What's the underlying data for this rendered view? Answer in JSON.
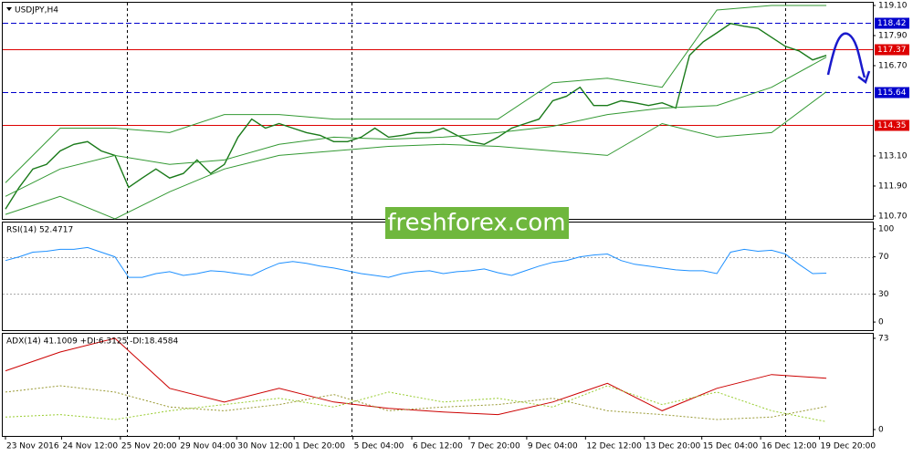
{
  "chart_data": [
    {
      "type": "line",
      "title": "USDJPY,H4",
      "xlim": [
        -0.2,
        63.4
      ],
      "ylim": [
        110.59,
        119.21
      ],
      "yticks": [
        {
          "value": 119.1,
          "label": "119.10"
        },
        {
          "value": 117.9,
          "label": "117.90"
        },
        {
          "value": 116.7,
          "label": "116.70"
        },
        {
          "value": 113.1,
          "label": "113.10"
        },
        {
          "value": 111.9,
          "label": "111.90"
        },
        {
          "value": 110.7,
          "label": "110.70"
        }
      ],
      "xticks": [
        {
          "value": 0,
          "label": "23 Nov 2016"
        },
        {
          "value": 4.1,
          "label": "24 Nov 12:00"
        },
        {
          "value": 8.4,
          "label": "25 Nov 20:00"
        },
        {
          "value": 12.7,
          "label": "29 Nov 04:00"
        },
        {
          "value": 16.9,
          "label": "30 Nov 12:00"
        },
        {
          "value": 21.1,
          "label": "1 Dec 20:00"
        },
        {
          "value": 25.4,
          "label": "5 Dec 04:00"
        },
        {
          "value": 29.7,
          "label": "6 Dec 12:00"
        },
        {
          "value": 33.9,
          "label": "7 Dec 20:00"
        },
        {
          "value": 38.1,
          "label": "9 Dec 04:00"
        },
        {
          "value": 42.4,
          "label": "12 Dec 12:00"
        },
        {
          "value": 46.7,
          "label": "13 Dec 20:00"
        },
        {
          "value": 50.9,
          "label": "15 Dec 04:00"
        },
        {
          "value": 55.2,
          "label": "16 Dec 12:00"
        },
        {
          "value": 59.5,
          "label": "19 Dec 20:00"
        }
      ],
      "levels": [
        {
          "value": 118.42,
          "color": "#0000cc",
          "dashed": true,
          "tag": true
        },
        {
          "value": 117.37,
          "color": "#dd0000",
          "dashed": false,
          "tag": true
        },
        {
          "value": 115.64,
          "color": "#0000cc",
          "dashed": true,
          "tag": true
        },
        {
          "value": 114.35,
          "color": "#dd0000",
          "dashed": false,
          "tag": true
        }
      ],
      "series": [
        {
          "color": "#1a7a1a",
          "width": 1.4,
          "values": [
            110.98,
            111.85,
            112.58,
            112.76,
            113.3,
            113.56,
            113.67,
            113.3,
            113.12,
            111.85,
            112.22,
            112.58,
            112.22,
            112.4,
            112.94,
            112.4,
            112.76,
            113.85,
            114.57,
            114.21,
            114.39,
            114.21,
            114.03,
            113.92,
            113.67,
            113.67,
            113.85,
            114.21,
            113.85,
            113.92,
            114.03,
            114.03,
            114.21,
            113.92,
            113.67,
            113.56,
            113.85,
            114.21,
            114.39,
            114.57,
            115.3,
            115.48,
            115.84,
            115.11,
            115.11,
            115.3,
            115.22,
            115.11,
            115.22,
            115.01,
            117.11,
            117.65,
            118.01,
            118.38,
            118.27,
            118.19,
            117.83,
            117.47,
            117.29,
            116.93,
            117.11
          ]
        },
        {
          "color": "#339933",
          "width": 1,
          "x": [
            0,
            4,
            8,
            12,
            16,
            20,
            24,
            28,
            32,
            36,
            40,
            44,
            48,
            52,
            56,
            60
          ],
          "values": [
            112.03,
            114.21,
            114.21,
            114.03,
            114.75,
            114.75,
            114.57,
            114.57,
            114.57,
            114.57,
            116.02,
            116.2,
            115.84,
            118.92,
            119.1,
            119.1
          ]
        },
        {
          "color": "#339933",
          "width": 1,
          "x": [
            0,
            4,
            8,
            12,
            16,
            20,
            24,
            28,
            32,
            36,
            40,
            44,
            48,
            52,
            56,
            60
          ],
          "values": [
            111.49,
            112.58,
            113.12,
            112.76,
            112.94,
            113.56,
            113.85,
            113.77,
            113.85,
            114.03,
            114.28,
            114.75,
            115.01,
            115.11,
            115.84,
            117.04
          ]
        },
        {
          "color": "#339933",
          "width": 1,
          "x": [
            0,
            4,
            8,
            12,
            16,
            20,
            24,
            28,
            32,
            36,
            40,
            44,
            48,
            52,
            56,
            60
          ],
          "values": [
            110.77,
            111.49,
            110.59,
            111.67,
            112.58,
            113.12,
            113.3,
            113.48,
            113.56,
            113.48,
            113.3,
            113.12,
            114.39,
            113.85,
            114.03,
            115.66
          ]
        }
      ]
    },
    {
      "type": "line",
      "title": "RSI(14) 52.4717",
      "ylim": [
        -8.7,
        106.8
      ],
      "yticks": [
        0,
        30,
        70,
        100
      ],
      "levels": [
        {
          "value": 70,
          "color": "#aaaaaa",
          "dashed": true,
          "tag": false
        },
        {
          "value": 30,
          "color": "#aaaaaa",
          "dashed": true,
          "tag": false
        }
      ],
      "series": [
        {
          "color": "#1e90ff",
          "width": 1,
          "values": [
            66,
            70,
            75,
            76,
            78,
            78,
            80,
            75,
            70,
            48,
            48,
            52,
            54,
            50,
            52,
            55,
            54,
            52,
            50,
            57,
            63,
            65,
            63,
            60,
            58,
            55,
            52,
            50,
            48,
            52,
            54,
            55,
            52,
            54,
            55,
            57,
            53,
            50,
            55,
            60,
            64,
            66,
            70,
            72,
            73,
            66,
            62,
            60,
            58,
            56,
            55,
            55,
            52,
            75,
            78,
            76,
            77,
            73,
            62,
            52,
            52.4717
          ]
        }
      ]
    },
    {
      "type": "line",
      "title": "ADX(14) 41.1009 +DI:6.3125 -DI:18.4584",
      "ylim": [
        -5.1,
        76.6
      ],
      "yticks": [
        0,
        73
      ],
      "series": [
        {
          "color": "#cc0000",
          "width": 1,
          "x": [
            0,
            4,
            8,
            12,
            16,
            20,
            24,
            28,
            32,
            36,
            40,
            44,
            48,
            52,
            56,
            60
          ],
          "values": [
            47,
            62,
            73,
            33,
            22,
            33,
            22,
            17,
            14,
            12,
            22,
            37,
            15,
            33,
            44,
            41.1009
          ]
        },
        {
          "color": "#9acd32",
          "width": 1,
          "dashed": true,
          "x": [
            0,
            4,
            8,
            12,
            16,
            20,
            24,
            28,
            32,
            36,
            40,
            44,
            48,
            52,
            56,
            60
          ],
          "values": [
            10,
            12,
            8,
            15,
            20,
            25,
            18,
            30,
            22,
            25,
            18,
            35,
            20,
            30,
            15,
            6.3125
          ]
        },
        {
          "color": "#999933",
          "width": 1,
          "dashed": true,
          "x": [
            0,
            4,
            8,
            12,
            16,
            20,
            24,
            28,
            32,
            36,
            40,
            44,
            48,
            52,
            56,
            60
          ],
          "values": [
            30,
            35,
            30,
            18,
            15,
            20,
            28,
            15,
            18,
            20,
            25,
            15,
            12,
            8,
            10,
            18.4584
          ]
        }
      ]
    }
  ],
  "watermark": "freshforex.com"
}
